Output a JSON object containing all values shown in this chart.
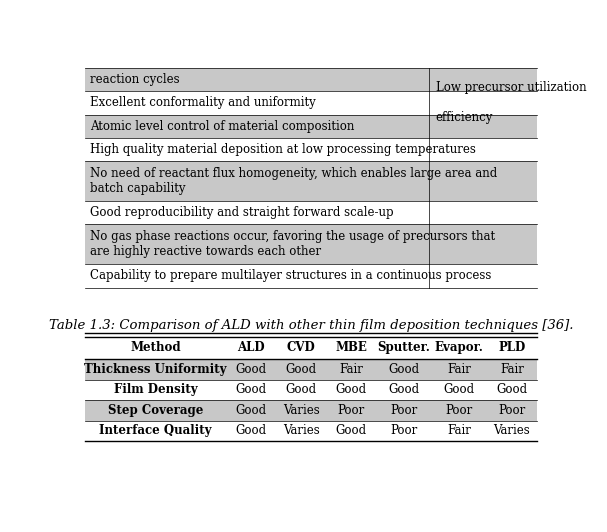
{
  "title": "Table 1.3: Comparison of ALD with other thin film deposition techniques [36].",
  "title_fontsize": 9.5,
  "col_headers": [
    "Method",
    "ALD",
    "CVD",
    "MBE",
    "Sputter.",
    "Evapor.",
    "PLD"
  ],
  "row_labels": [
    "Thickness Uniformity",
    "Film Density",
    "Step Coverage",
    "Interface Quality"
  ],
  "table_data": [
    [
      "Good",
      "Good",
      "Fair",
      "Good",
      "Fair",
      "Fair"
    ],
    [
      "Good",
      "Good",
      "Good",
      "Good",
      "Good",
      "Good"
    ],
    [
      "Good",
      "Varies",
      "Poor",
      "Poor",
      "Poor",
      "Poor"
    ],
    [
      "Good",
      "Varies",
      "Good",
      "Poor",
      "Fair",
      "Varies"
    ]
  ],
  "shaded_rows": [
    0,
    2
  ],
  "shade_color": "#c8c8c8",
  "white_color": "#ffffff",
  "text_color": "#000000",
  "font_size": 8.5,
  "header_font_size": 8.5,
  "figsize": [
    6.07,
    5.32
  ],
  "dpi": 100,
  "top_table_rows": [
    {
      "text": "reaction cycles",
      "right_text": "",
      "shaded": true
    },
    {
      "text": "Excellent conformality and uniformity",
      "right_text": "Low precursor utilization\n\nefficiency",
      "shaded": false
    },
    {
      "text": "Atomic level control of material composition",
      "right_text": "",
      "shaded": true
    },
    {
      "text": "High quality material deposition at low processing temperatures",
      "right_text": "",
      "shaded": false
    },
    {
      "text": "No need of reactant flux homogeneity, which enables large area and\nbatch capability",
      "right_text": "",
      "shaded": true
    },
    {
      "text": "Good reproducibility and straight forward scale-up",
      "right_text": "",
      "shaded": false
    },
    {
      "text": "No gas phase reactions occur, favoring the usage of precursors that\nare highly reactive towards each other",
      "right_text": "",
      "shaded": true
    },
    {
      "text": "Capability to prepare multilayer structures in a continuous process",
      "right_text": "",
      "shaded": false
    }
  ]
}
